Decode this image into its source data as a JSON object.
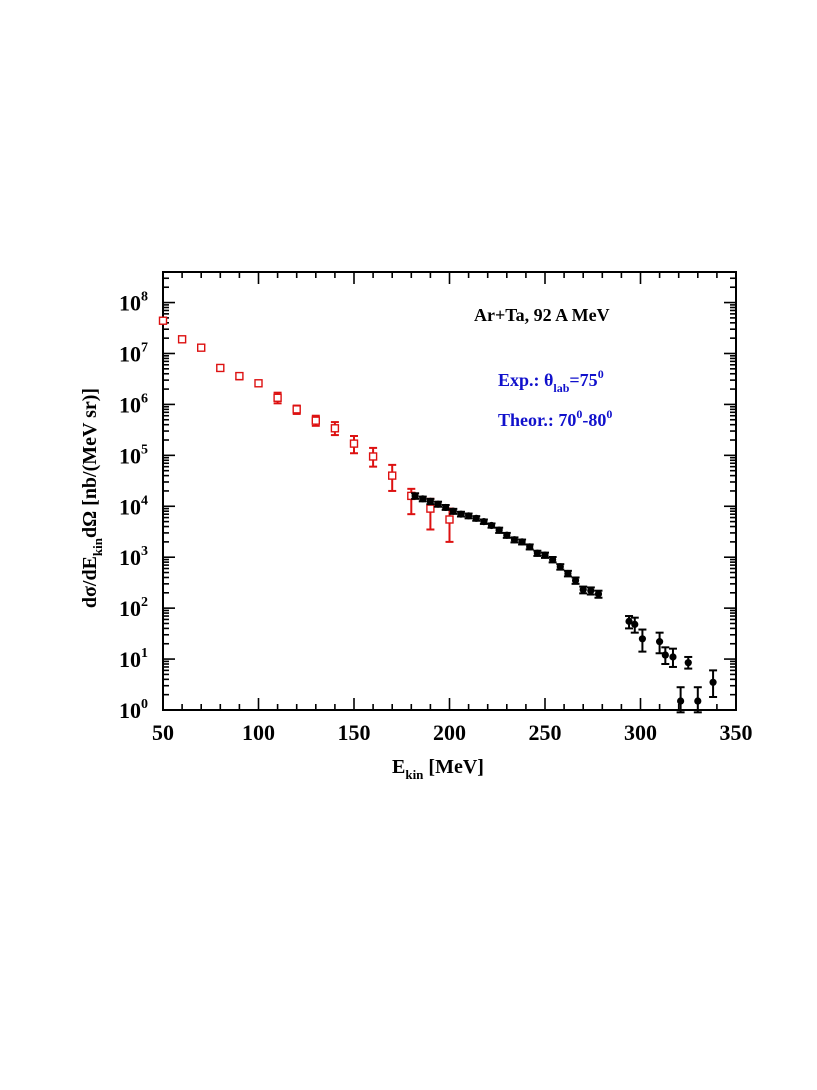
{
  "chart_data": {
    "type": "scatter",
    "title": "",
    "xlabel": {
      "main": "E",
      "sub": "kin",
      "unit": " [MeV]"
    },
    "ylabel": {
      "p1": "dσ/dE",
      "sub": "kin",
      "p2": "dΩ  [nb/(MeV sr)]"
    },
    "xlim": [
      50,
      350
    ],
    "ylim_log10": [
      0,
      8.6
    ],
    "x_ticks": [
      {
        "value": 50,
        "label": "50"
      },
      {
        "value": 100,
        "label": "100"
      },
      {
        "value": 150,
        "label": "150"
      },
      {
        "value": 200,
        "label": "200"
      },
      {
        "value": 250,
        "label": "250"
      },
      {
        "value": 300,
        "label": "300"
      },
      {
        "value": 350,
        "label": "350"
      }
    ],
    "y_ticks": [
      {
        "exp": 0,
        "base": "10",
        "sup": "0"
      },
      {
        "exp": 1,
        "base": "10",
        "sup": "1"
      },
      {
        "exp": 2,
        "base": "10",
        "sup": "2"
      },
      {
        "exp": 3,
        "base": "10",
        "sup": "3"
      },
      {
        "exp": 4,
        "base": "10",
        "sup": "4"
      },
      {
        "exp": 5,
        "base": "10",
        "sup": "5"
      },
      {
        "exp": 6,
        "base": "10",
        "sup": "6"
      },
      {
        "exp": 7,
        "base": "10",
        "sup": "7"
      },
      {
        "exp": 8,
        "base": "10",
        "sup": "8"
      }
    ],
    "annotations": {
      "system": "Ar+Ta,  92 A MeV",
      "exp": {
        "a": "Exp.:  θ",
        "sub": "lab",
        "b": "=75",
        "sup": "0"
      },
      "theor": {
        "a": "Theor.:  70",
        "sup1": "0",
        "b": "-80",
        "sup2": "0"
      }
    },
    "series": [
      {
        "name": "Theor.",
        "color": "#dd1111",
        "marker": "open-square",
        "points": [
          {
            "x": 50,
            "y": 44000000,
            "lo": 40000000,
            "hi": 48000000
          },
          {
            "x": 60,
            "y": 19000000,
            "lo": 17000000,
            "hi": 21000000
          },
          {
            "x": 70,
            "y": 13000000,
            "lo": 11500000,
            "hi": 14500000
          },
          {
            "x": 80,
            "y": 5200000,
            "lo": 4600000,
            "hi": 5800000
          },
          {
            "x": 90,
            "y": 3600000,
            "lo": 3100000,
            "hi": 4100000
          },
          {
            "x": 100,
            "y": 2600000,
            "lo": 2300000,
            "hi": 2950000
          },
          {
            "x": 110,
            "y": 1350000,
            "lo": 1050000,
            "hi": 1700000
          },
          {
            "x": 120,
            "y": 800000,
            "lo": 650000,
            "hi": 950000
          },
          {
            "x": 130,
            "y": 480000,
            "lo": 380000,
            "hi": 600000
          },
          {
            "x": 140,
            "y": 340000,
            "lo": 250000,
            "hi": 450000
          },
          {
            "x": 150,
            "y": 170000,
            "lo": 110000,
            "hi": 240000
          },
          {
            "x": 160,
            "y": 95000,
            "lo": 60000,
            "hi": 140000
          },
          {
            "x": 170,
            "y": 40000,
            "lo": 20000,
            "hi": 65000
          },
          {
            "x": 180,
            "y": 16000,
            "lo": 7000,
            "hi": 22000
          },
          {
            "x": 190,
            "y": 9000,
            "lo": 3500,
            "hi": 14000
          },
          {
            "x": 200,
            "y": 5500,
            "lo": 2000,
            "hi": 9000
          }
        ]
      },
      {
        "name": "Exp.",
        "color": "#000000",
        "marker": "filled-circle",
        "points": [
          {
            "x": 182,
            "y": 16000,
            "lo": 14000,
            "hi": 18000
          },
          {
            "x": 186,
            "y": 14000,
            "lo": 12500,
            "hi": 15500
          },
          {
            "x": 190,
            "y": 12500,
            "lo": 11000,
            "hi": 14000
          },
          {
            "x": 194,
            "y": 11000,
            "lo": 9800,
            "hi": 12300
          },
          {
            "x": 198,
            "y": 9500,
            "lo": 8500,
            "hi": 10600
          },
          {
            "x": 202,
            "y": 8000,
            "lo": 7100,
            "hi": 8900
          },
          {
            "x": 206,
            "y": 7000,
            "lo": 6300,
            "hi": 7800
          },
          {
            "x": 210,
            "y": 6500,
            "lo": 5800,
            "hi": 7200
          },
          {
            "x": 214,
            "y": 5800,
            "lo": 5200,
            "hi": 6400
          },
          {
            "x": 218,
            "y": 5000,
            "lo": 4500,
            "hi": 5500
          },
          {
            "x": 222,
            "y": 4200,
            "lo": 3800,
            "hi": 4600
          },
          {
            "x": 226,
            "y": 3400,
            "lo": 3000,
            "hi": 3800
          },
          {
            "x": 230,
            "y": 2700,
            "lo": 2400,
            "hi": 3000
          },
          {
            "x": 234,
            "y": 2200,
            "lo": 1950,
            "hi": 2450
          },
          {
            "x": 238,
            "y": 2000,
            "lo": 1780,
            "hi": 2220
          },
          {
            "x": 242,
            "y": 1600,
            "lo": 1420,
            "hi": 1780
          },
          {
            "x": 246,
            "y": 1200,
            "lo": 1060,
            "hi": 1340
          },
          {
            "x": 250,
            "y": 1100,
            "lo": 970,
            "hi": 1230
          },
          {
            "x": 254,
            "y": 900,
            "lo": 790,
            "hi": 1010
          },
          {
            "x": 258,
            "y": 650,
            "lo": 570,
            "hi": 730
          },
          {
            "x": 262,
            "y": 480,
            "lo": 420,
            "hi": 540
          },
          {
            "x": 266,
            "y": 350,
            "lo": 300,
            "hi": 400
          },
          {
            "x": 270,
            "y": 230,
            "lo": 195,
            "hi": 265
          },
          {
            "x": 274,
            "y": 220,
            "lo": 185,
            "hi": 255
          },
          {
            "x": 278,
            "y": 190,
            "lo": 160,
            "hi": 220
          },
          {
            "x": 294,
            "y": 55,
            "lo": 40,
            "hi": 70
          },
          {
            "x": 297,
            "y": 48,
            "lo": 33,
            "hi": 65
          },
          {
            "x": 301,
            "y": 25,
            "lo": 14,
            "hi": 38
          },
          {
            "x": 310,
            "y": 22,
            "lo": 13,
            "hi": 33
          },
          {
            "x": 313,
            "y": 12,
            "lo": 8,
            "hi": 17
          },
          {
            "x": 317,
            "y": 11,
            "lo": 7,
            "hi": 16
          },
          {
            "x": 321,
            "y": 1.5,
            "lo": 0.9,
            "hi": 2.8
          },
          {
            "x": 325,
            "y": 8.5,
            "lo": 6.5,
            "hi": 11
          },
          {
            "x": 330,
            "y": 1.5,
            "lo": 0.9,
            "hi": 2.8
          },
          {
            "x": 338,
            "y": 3.5,
            "lo": 1.8,
            "hi": 6
          }
        ]
      }
    ]
  }
}
